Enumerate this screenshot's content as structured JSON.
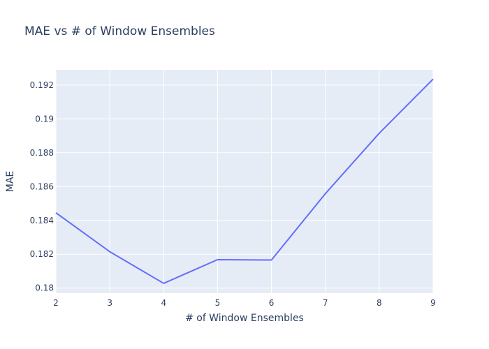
{
  "chart_data": {
    "type": "line",
    "title": "MAE vs # of Window Ensembles",
    "xlabel": "# of Window Ensembles",
    "ylabel": "MAE",
    "x": [
      2,
      3,
      4,
      5,
      6,
      7,
      8,
      9
    ],
    "series": [
      {
        "values": [
          0.18445,
          0.18215,
          0.18028,
          0.18168,
          0.18166,
          0.18558,
          0.18915,
          0.19235
        ]
      }
    ],
    "xlim": [
      2,
      9
    ],
    "ylim": [
      0.1797,
      0.1929
    ],
    "x_ticks": [
      "2",
      "3",
      "4",
      "5",
      "6",
      "7",
      "8",
      "9"
    ],
    "y_tick_values": [
      0.18,
      0.182,
      0.184,
      0.186,
      0.188,
      0.19,
      0.192
    ],
    "y_ticks": [
      "0.18",
      "0.182",
      "0.184",
      "0.186",
      "0.188",
      "0.19",
      "0.192"
    ],
    "grid": true,
    "colors": {
      "plot_background": "#e5ecf6",
      "grid": "#ffffff",
      "line": "#636efa",
      "text": "#2a3f5f"
    }
  }
}
